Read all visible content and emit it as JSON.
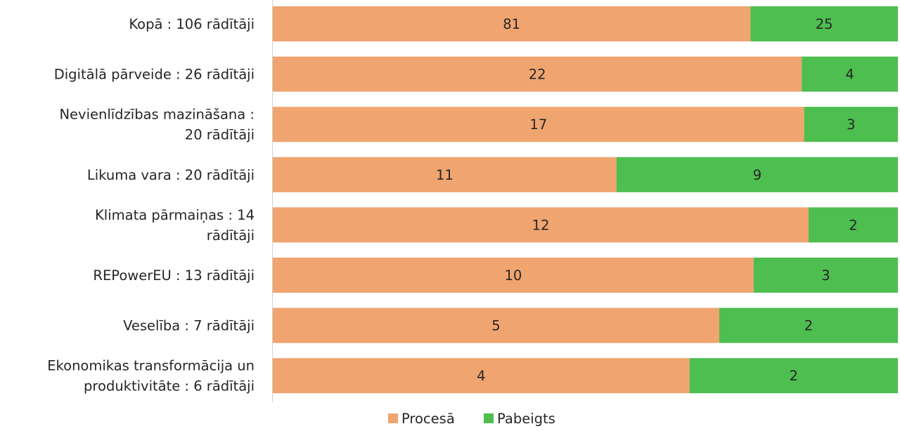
{
  "chart_data": {
    "type": "bar",
    "orientation": "horizontal",
    "stacked": "percent",
    "title": "",
    "xlabel": "",
    "ylabel": "",
    "grid": false,
    "legend": "bottom",
    "categories": [
      "Kopā : 106 rādītāji",
      "Digitālā pārveide : 26 rādītāji",
      "Nevienlīdzības mazināšana : 20 rādītāji",
      "Likuma vara : 20 rādītāji",
      "Klimata pārmaiņas : 14 rādītāji",
      "REPowerEU : 13 rādītāji",
      "Veselība : 7 rādītāji",
      "Ekonomikas transformācija un produktivitāte : 6 rādītāji"
    ],
    "category_lines": [
      [
        "Kopā : 106 rādītāji"
      ],
      [
        "Digitālā pārveide : 26 rādītāji"
      ],
      [
        "Nevienlīdzības mazināšana :",
        "20 rādītāji"
      ],
      [
        "Likuma vara : 20 rādītāji"
      ],
      [
        "Klimata pārmaiņas : 14",
        "rādītāji"
      ],
      [
        "REPowerEU : 13 rādītāji"
      ],
      [
        "Veselība : 7 rādītāji"
      ],
      [
        "Ekonomikas transformācija un",
        "produktivitāte : 6 rādītāji"
      ]
    ],
    "series": [
      {
        "name": "Procesā",
        "color": "#F0A46F",
        "values": [
          81,
          22,
          17,
          11,
          12,
          10,
          5,
          4
        ]
      },
      {
        "name": "Pabeigts",
        "color": "#4DBE4F",
        "values": [
          25,
          4,
          3,
          9,
          2,
          3,
          2,
          2
        ]
      }
    ]
  }
}
